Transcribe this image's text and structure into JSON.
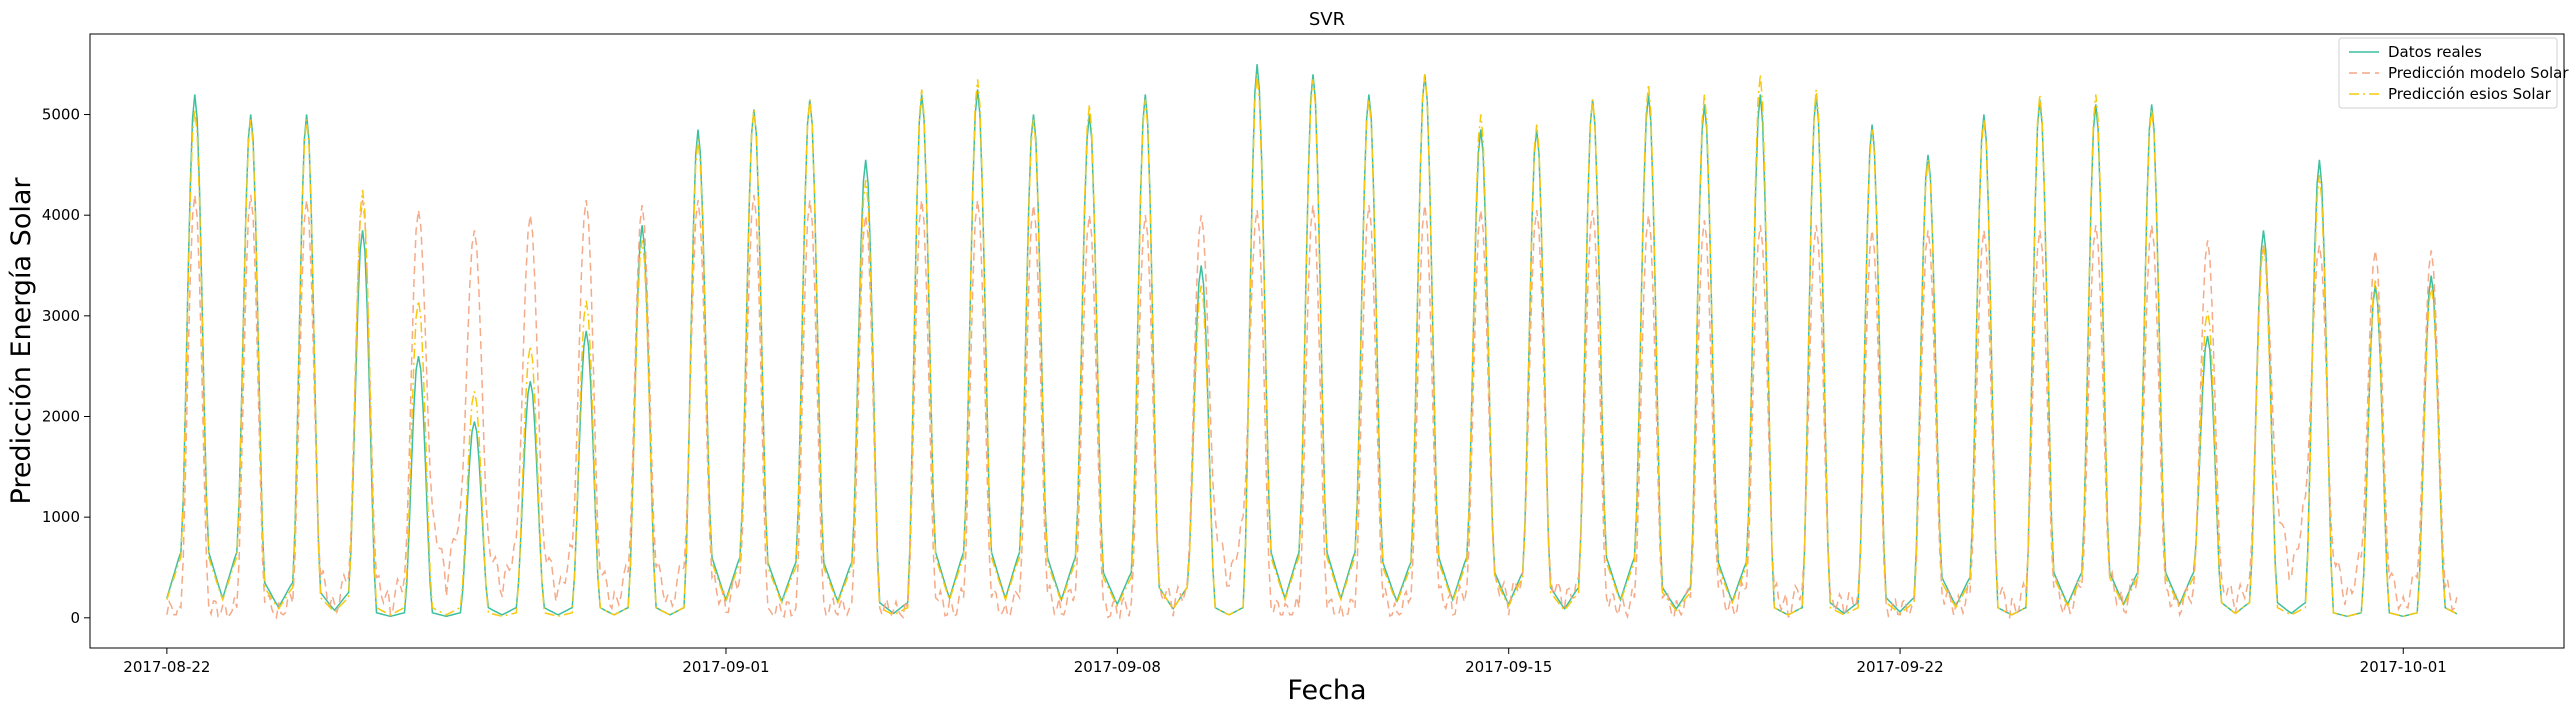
{
  "chart_data": {
    "type": "line",
    "title": "SVR",
    "xlabel": "Fecha",
    "ylabel": "Predicción Energía Solar",
    "x_range": [
      "2017-08-20T15:00",
      "2017-10-03T21:00"
    ],
    "ylim": [
      -300,
      5800
    ],
    "x_ticks": [
      "2017-08-22",
      "2017-09-01",
      "2017-09-08",
      "2017-09-15",
      "2017-09-22",
      "2017-10-01"
    ],
    "y_ticks": [
      0,
      1000,
      2000,
      3000,
      4000,
      5000
    ],
    "grid": false,
    "legend_position": "top-right",
    "start_date": "2017-08-22",
    "end_date": "2017-10-03",
    "series": [
      {
        "name": "Datos reales",
        "color": "#3dbfa0",
        "style": "solid",
        "daily_peaks": [
          5200,
          5000,
          5000,
          3850,
          2600,
          1950,
          2350,
          2850,
          3900,
          4850,
          5050,
          5150,
          4550,
          5200,
          5250,
          5000,
          5000,
          5200,
          3500,
          5500,
          5400,
          5200,
          5400,
          4850,
          4850,
          5150,
          5200,
          5100,
          5200,
          5200,
          4900,
          4600,
          5000,
          5150,
          5100,
          5100,
          2800,
          3850,
          4550,
          3300,
          3400
        ],
        "daily_lows": [
          650,
          350,
          250,
          50,
          50,
          100,
          100,
          100,
          100,
          600,
          550,
          550,
          150,
          650,
          650,
          600,
          450,
          300,
          100,
          650,
          650,
          550,
          600,
          450,
          300,
          600,
          300,
          550,
          100,
          150,
          200,
          400,
          100,
          450,
          450,
          450,
          150,
          150,
          50,
          50,
          100
        ]
      },
      {
        "name": "Predicción modelo Solar",
        "color": "#f4a582",
        "style": "dashed",
        "daily_peaks": [
          4200,
          4200,
          4150,
          4150,
          4050,
          3850,
          4000,
          4150,
          4100,
          4150,
          4200,
          4150,
          4000,
          4150,
          4150,
          4100,
          4000,
          4000,
          4000,
          4050,
          4100,
          4100,
          4100,
          4050,
          4050,
          4050,
          4000,
          3950,
          3900,
          3900,
          3850,
          3850,
          3850,
          3850,
          3900,
          3900,
          3750,
          3700,
          3700,
          3650,
          3650
        ],
        "daily_lows": [
          100,
          150,
          400,
          400,
          1100,
          800,
          700,
          450,
          500,
          400,
          100,
          150,
          100,
          200,
          200,
          250,
          150,
          350,
          1000,
          100,
          100,
          200,
          300,
          450,
          400,
          200,
          200,
          300,
          300,
          250,
          150,
          250,
          250,
          300,
          400,
          300,
          400,
          1200,
          600,
          400,
          300
        ]
      },
      {
        "name": "Predicción esios Solar",
        "color": "#f9c80e",
        "style": "dashdot",
        "daily_peaks": [
          5050,
          4950,
          4950,
          4250,
          3150,
          2250,
          2700,
          3150,
          3750,
          4750,
          5050,
          5150,
          4350,
          5250,
          5350,
          4950,
          5100,
          5150,
          3300,
          5400,
          5350,
          5150,
          5400,
          5000,
          4900,
          5150,
          5300,
          5200,
          5400,
          5250,
          4850,
          4550,
          4950,
          5200,
          5200,
          5050,
          3050,
          3700,
          4400,
          3350,
          3300
        ],
        "daily_lows": [
          600,
          300,
          200,
          100,
          100,
          50,
          50,
          100,
          100,
          550,
          500,
          500,
          100,
          600,
          600,
          550,
          400,
          300,
          100,
          600,
          600,
          500,
          550,
          400,
          250,
          550,
          250,
          500,
          100,
          100,
          150,
          350,
          100,
          400,
          400,
          400,
          150,
          100,
          50,
          50,
          100
        ]
      }
    ]
  }
}
